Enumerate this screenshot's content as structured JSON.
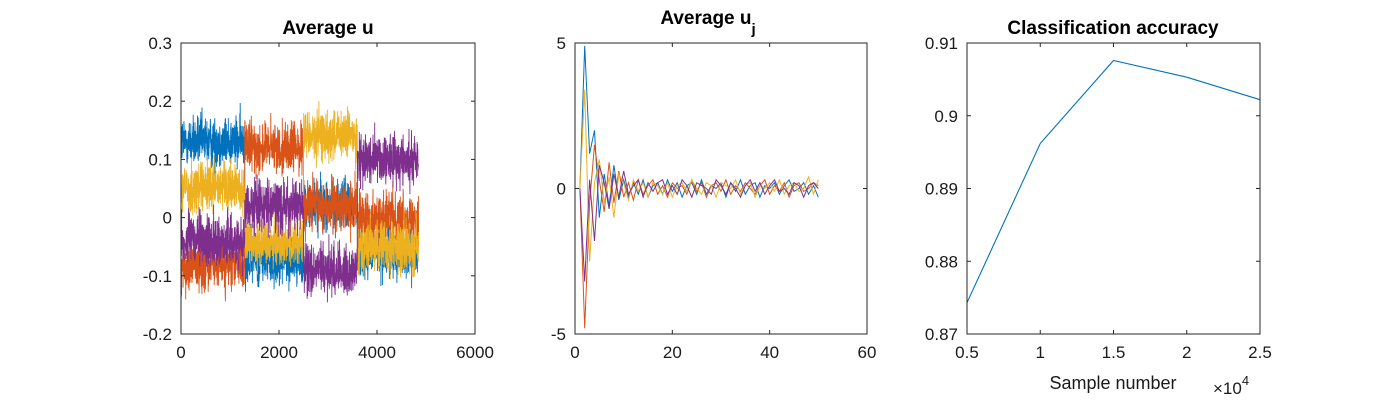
{
  "colors": [
    "#0072BD",
    "#D95319",
    "#EDB120",
    "#7E2F8E"
  ],
  "chart_data": [
    {
      "type": "line",
      "title": "Average u",
      "xlabel": "",
      "ylabel": "",
      "xlim": [
        0,
        6000
      ],
      "ylim": [
        -0.2,
        0.3
      ],
      "xticks": [
        "0",
        "2000",
        "4000",
        "6000"
      ],
      "xtick_values": [
        0,
        2000,
        4000,
        6000
      ],
      "yticks": [
        "-0.2",
        "-0.1",
        "0",
        "0.1",
        "0.2",
        "0.3"
      ],
      "ytick_values": [
        -0.2,
        -0.1,
        0,
        0.1,
        0.2,
        0.3
      ],
      "n_points": 4850,
      "segments_x": [
        0,
        1300,
        2500,
        3600,
        4850
      ],
      "series": [
        {
          "levels": [
            0.13,
            -0.07,
            0.02,
            -0.06
          ],
          "noise": 0.04
        },
        {
          "levels": [
            -0.08,
            0.12,
            0.02,
            0.0
          ],
          "noise": 0.04
        },
        {
          "levels": [
            0.05,
            -0.04,
            0.14,
            -0.05
          ],
          "noise": 0.04
        },
        {
          "levels": [
            -0.04,
            0.02,
            -0.09,
            0.1
          ],
          "noise": 0.04
        }
      ]
    },
    {
      "type": "line",
      "title": "Average u",
      "title_subscript": "j",
      "xlabel": "",
      "ylabel": "",
      "xlim": [
        0,
        60
      ],
      "ylim": [
        -5,
        5
      ],
      "xticks": [
        "0",
        "20",
        "40",
        "60"
      ],
      "xtick_values": [
        0,
        20,
        40,
        60
      ],
      "yticks": [
        "-5",
        "0",
        "5"
      ],
      "ytick_values": [
        -5,
        0,
        5
      ],
      "x": [
        1,
        2,
        3,
        4,
        5,
        6,
        7,
        8,
        9,
        10,
        11,
        12,
        13,
        14,
        15,
        16,
        17,
        18,
        19,
        20,
        21,
        22,
        23,
        24,
        25,
        26,
        27,
        28,
        29,
        30,
        31,
        32,
        33,
        34,
        35,
        36,
        37,
        38,
        39,
        40,
        41,
        42,
        43,
        44,
        45,
        46,
        47,
        48,
        49,
        50
      ],
      "series": [
        {
          "values": [
            0.0,
            4.9,
            1.2,
            2.0,
            -1.0,
            0.5,
            -0.6,
            0.8,
            -0.4,
            0.3,
            -0.3,
            0.2,
            -0.2,
            0.3,
            -0.3,
            0.1,
            0.2,
            -0.2,
            0.3,
            -0.1,
            0.2,
            -0.3,
            0.1,
            0.2,
            -0.2,
            0.3,
            -0.2,
            0.1,
            0.0,
            0.2,
            -0.3,
            0.2,
            -0.1,
            0.3,
            -0.2,
            0.1,
            0.2,
            -0.3,
            0.1,
            0.0,
            0.2,
            -0.2,
            0.1,
            0.3,
            -0.1,
            0.0,
            0.2,
            -0.2,
            0.1,
            -0.3
          ]
        },
        {
          "values": [
            0.0,
            -4.8,
            -0.5,
            1.5,
            0.3,
            -0.8,
            0.9,
            -0.5,
            0.6,
            -0.3,
            0.2,
            -0.4,
            0.3,
            -0.2,
            0.1,
            0.3,
            -0.2,
            0.1,
            -0.3,
            0.2,
            0.0,
            0.1,
            -0.2,
            0.3,
            -0.1,
            0.2,
            -0.3,
            0.1,
            0.2,
            -0.1,
            0.3,
            -0.2,
            0.1,
            -0.1,
            0.2,
            0.0,
            -0.2,
            0.1,
            0.3,
            -0.2,
            0.1,
            -0.1,
            0.2,
            -0.3,
            0.1,
            0.2,
            -0.1,
            0.0,
            0.2,
            0.1
          ]
        },
        {
          "values": [
            0.0,
            3.4,
            -2.5,
            0.2,
            1.0,
            -0.5,
            0.4,
            -1.0,
            0.5,
            0.2,
            -0.4,
            0.3,
            -0.1,
            0.2,
            -0.3,
            0.2,
            0.1,
            -0.2,
            0.2,
            -0.3,
            0.1,
            0.2,
            -0.1,
            0.3,
            0.0,
            -0.2,
            0.2,
            0.1,
            -0.3,
            0.2,
            0.1,
            0.0,
            0.3,
            -0.2,
            0.1,
            0.2,
            -0.3,
            0.1,
            0.0,
            0.2,
            -0.1,
            0.3,
            -0.2,
            0.1,
            0.2,
            -0.1,
            0.0,
            0.4,
            -0.2,
            0.3
          ]
        },
        {
          "values": [
            0.0,
            -3.2,
            0.3,
            -1.8,
            0.8,
            0.2,
            -0.7,
            0.5,
            -0.3,
            0.6,
            -0.2,
            0.1,
            0.3,
            -0.3,
            0.2,
            -0.1,
            0.2,
            0.3,
            -0.2,
            0.1,
            -0.2,
            0.3,
            0.1,
            -0.3,
            0.2,
            0.1,
            0.0,
            -0.2,
            0.3,
            0.1,
            -0.2,
            0.2,
            0.0,
            -0.3,
            0.1,
            0.3,
            -0.1,
            0.2,
            -0.2,
            0.1,
            0.3,
            -0.1,
            0.0,
            -0.2,
            0.2,
            0.1,
            -0.3,
            0.1,
            0.2,
            0.0
          ]
        }
      ]
    },
    {
      "type": "line",
      "title": "Classification accuracy",
      "xlabel": "Sample number",
      "x_multiplier_label": "×10",
      "x_multiplier_exponent": "4",
      "ylabel": "",
      "xlim": [
        0.5,
        2.5
      ],
      "ylim": [
        0.87,
        0.91
      ],
      "xticks": [
        "0.5",
        "1",
        "1.5",
        "2",
        "2.5"
      ],
      "xtick_values": [
        0.5,
        1.0,
        1.5,
        2.0,
        2.5
      ],
      "yticks": [
        "0.87",
        "0.88",
        "0.89",
        "0.9",
        "0.91"
      ],
      "ytick_values": [
        0.87,
        0.88,
        0.89,
        0.9,
        0.91
      ],
      "x": [
        0.5,
        1.0,
        1.5,
        2.0,
        2.5
      ],
      "series": [
        {
          "values": [
            0.8743,
            0.8962,
            0.9076,
            0.9053,
            0.9022
          ]
        }
      ]
    }
  ]
}
